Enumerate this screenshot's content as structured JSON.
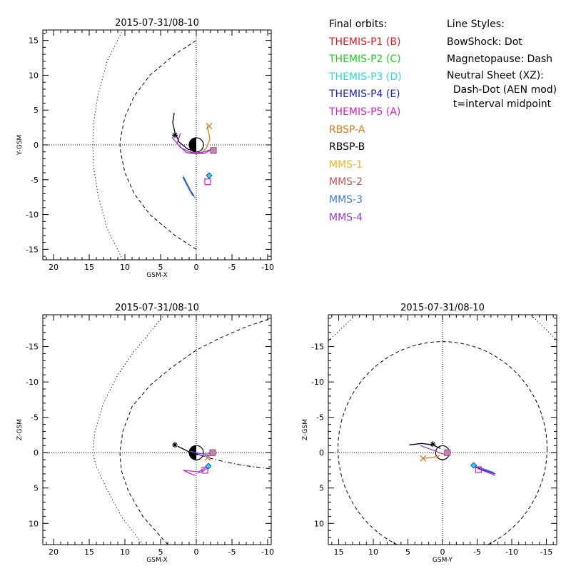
{
  "colors": {
    "THEMIS-P1": "#e8181b",
    "THEMIS-P2": "#19d419",
    "THEMIS-P3": "#22dede",
    "THEMIS-P4": "#1820c8",
    "THEMIS-P5": "#d41bd4",
    "RBSP-A": "#e07818",
    "RBSP-B": "#000000",
    "MMS-1": "#f0b21c",
    "MMS-2": "#c85050",
    "MMS-3": "#3a7fd0",
    "MMS-4": "#9838d8"
  },
  "legend": {
    "orbits_title": "Final orbits:",
    "orbits": [
      {
        "label": "THEMIS-P1 (B)",
        "key": "THEMIS-P1"
      },
      {
        "label": "THEMIS-P2 (C)",
        "key": "THEMIS-P2"
      },
      {
        "label": "THEMIS-P3 (D)",
        "key": "THEMIS-P3"
      },
      {
        "label": "THEMIS-P4 (E)",
        "key": "THEMIS-P4"
      },
      {
        "label": "THEMIS-P5 (A)",
        "key": "THEMIS-P5"
      },
      {
        "label": "RBSP-A",
        "key": "RBSP-A"
      },
      {
        "label": "RBSP-B",
        "key": "RBSP-B"
      },
      {
        "label": "MMS-1",
        "key": "MMS-1"
      },
      {
        "label": "MMS-2",
        "key": "MMS-2"
      },
      {
        "label": "MMS-3",
        "key": "MMS-3"
      },
      {
        "label": "MMS-4",
        "key": "MMS-4"
      }
    ],
    "styles_title": "Line Styles:",
    "styles": [
      "BowShock: Dot",
      "Magnetopause: Dash"
    ],
    "styles_note": [
      "Neutral Sheet (XZ):",
      "  Dash-Dot (AEN mod)",
      "  t=interval midpoint"
    ]
  },
  "chart_data": [
    {
      "type": "line",
      "panel": "XY",
      "title": "2015-07-31/08-10",
      "xlabel": "GSM-X",
      "ylabel": "Y-GSM",
      "xlim": [
        21.5,
        -10.5
      ],
      "ylim": [
        16.5,
        -16.5
      ],
      "xticks": [
        20,
        15,
        10,
        5,
        0,
        -5,
        -10
      ],
      "yticks": [
        -15,
        -10,
        -5,
        0,
        5,
        10,
        15
      ],
      "boundaries": [
        {
          "name": "BowShock",
          "style": "dot",
          "points": [
            [
              10.3,
              -16.5
            ],
            [
              12.5,
              -12
            ],
            [
              13.8,
              -7
            ],
            [
              14.4,
              -3
            ],
            [
              14.5,
              0
            ],
            [
              14.4,
              3
            ],
            [
              13.8,
              7
            ],
            [
              12.5,
              12
            ],
            [
              10.3,
              16.5
            ]
          ]
        },
        {
          "name": "Magnetopause",
          "style": "dash",
          "points": [
            [
              0,
              -15
            ],
            [
              3,
              -13
            ],
            [
              6.5,
              -10
            ],
            [
              8.7,
              -7
            ],
            [
              10,
              -4
            ],
            [
              10.6,
              -1
            ],
            [
              10.7,
              0
            ],
            [
              10.6,
              1
            ],
            [
              10,
              4
            ],
            [
              8.7,
              7
            ],
            [
              6.5,
              10
            ],
            [
              3,
              13
            ],
            [
              0,
              15
            ]
          ]
        }
      ],
      "series": [
        {
          "key": "THEMIS-P3",
          "points": [
            [
              0.1,
              -7.7
            ],
            [
              0.6,
              -7
            ],
            [
              1.1,
              -6
            ],
            [
              1.6,
              -5
            ],
            [
              1.9,
              -4.4
            ]
          ]
        },
        {
          "key": "THEMIS-P4",
          "points": [
            [
              0.3,
              -7.4
            ],
            [
              0.8,
              -6.6
            ],
            [
              1.3,
              -5.6
            ],
            [
              1.8,
              -4.6
            ]
          ]
        },
        {
          "key": "MMS-3",
          "points": [
            [
              0.5,
              -7.3
            ],
            [
              1,
              -6.4
            ],
            [
              1.5,
              -5.4
            ],
            [
              1.9,
              -4.6
            ]
          ]
        },
        {
          "key": "THEMIS-P5",
          "points": [
            [
              2.2,
              1.7
            ],
            [
              2.7,
              0.2
            ],
            [
              1.4,
              -1.1
            ],
            [
              0,
              -1.3
            ],
            [
              -1.2,
              -1.2
            ],
            [
              -2.2,
              -0.6
            ],
            [
              -2.4,
              -0.8
            ]
          ]
        },
        {
          "key": "RBSP-A",
          "points": [
            [
              0.9,
              -0.9
            ],
            [
              0.2,
              -1.2
            ],
            [
              -0.6,
              -1.2
            ],
            [
              -1.4,
              -0.5
            ],
            [
              -1.9,
              0.8
            ],
            [
              -1.7,
              2
            ],
            [
              -1.5,
              2.7
            ]
          ]
        },
        {
          "key": "RBSP-B",
          "points": [
            [
              3.1,
              4.6
            ],
            [
              3.3,
              3.2
            ],
            [
              3,
              1.8
            ],
            [
              2.4,
              0.4
            ],
            [
              1.2,
              -0.6
            ],
            [
              0.3,
              -0.9
            ]
          ]
        },
        {
          "key": "MMS-4",
          "points": [
            [
              3.4,
              1.1
            ],
            [
              2.2,
              -0.4
            ],
            [
              0.7,
              -1.1
            ],
            [
              -0.8,
              -1.1
            ],
            [
              -2.2,
              -0.6
            ]
          ]
        }
      ],
      "markers": [
        {
          "key": "THEMIS-P5",
          "shape": "square",
          "at": [
            -1.6,
            -5.3
          ]
        },
        {
          "key": "THEMIS-P3",
          "shape": "diamond",
          "at": [
            -1.8,
            -4.4
          ]
        },
        {
          "key": "RBSP-A",
          "shape": "x",
          "at": [
            -1.8,
            2.7
          ]
        },
        {
          "key": "RBSP-B",
          "shape": "asterisk",
          "at": [
            3.0,
            1.4
          ]
        },
        {
          "key": "MMS-4",
          "shape": "square-x",
          "at": [
            -2.4,
            -0.8
          ]
        }
      ]
    },
    {
      "type": "line",
      "panel": "XZ",
      "title": "2015-07-31/08-10",
      "xlabel": "GSM-X",
      "ylabel": "Z-GSM",
      "xlim": [
        21.5,
        -10.5
      ],
      "ylim": [
        -19.5,
        13
      ],
      "xticks": [
        20,
        15,
        10,
        5,
        0,
        -5,
        -10
      ],
      "yticks": [
        10,
        5,
        0,
        -5,
        -10,
        -15
      ],
      "boundaries": [
        {
          "name": "BowShock",
          "style": "dot",
          "points": [
            [
              7.5,
              13
            ],
            [
              10.5,
              9
            ],
            [
              12.6,
              5
            ],
            [
              14,
              2
            ],
            [
              14.5,
              0
            ],
            [
              14.2,
              -3
            ],
            [
              13,
              -7
            ],
            [
              11,
              -11
            ],
            [
              8.8,
              -14.2
            ],
            [
              6.5,
              -17
            ],
            [
              4.5,
              -19.5
            ]
          ]
        },
        {
          "name": "Magnetopause",
          "style": "dash",
          "points": [
            [
              4,
              13
            ],
            [
              7.5,
              9
            ],
            [
              9.5,
              5.5
            ],
            [
              10.5,
              2.5
            ],
            [
              10.7,
              0
            ],
            [
              10.3,
              -3
            ],
            [
              9,
              -6.5
            ],
            [
              6.5,
              -9.5
            ],
            [
              3.5,
              -12
            ],
            [
              0,
              -14.5
            ],
            [
              -3.5,
              -16.3
            ],
            [
              -7,
              -17.8
            ],
            [
              -10.5,
              -19
            ]
          ]
        },
        {
          "name": "Neutral Sheet",
          "style": "dashdot",
          "points": [
            [
              -0.5,
              0.3
            ],
            [
              -2,
              0.8
            ],
            [
              -4,
              1.3
            ],
            [
              -6,
              1.7
            ],
            [
              -8,
              2
            ],
            [
              -10.5,
              2.3
            ]
          ]
        }
      ],
      "series": [
        {
          "key": "THEMIS-P5",
          "points": [
            [
              0.2,
              3.2
            ],
            [
              1,
              2.9
            ],
            [
              1.8,
              2.5
            ],
            [
              -0.3,
              2.7
            ],
            [
              -1,
              2.4
            ],
            [
              -1.6,
              1.8
            ]
          ]
        },
        {
          "key": "MMS-3",
          "points": [
            [
              -0.2,
              2.9
            ],
            [
              -1,
              2.6
            ],
            [
              -1.7,
              2.1
            ]
          ]
        },
        {
          "key": "THEMIS-P4",
          "points": [
            [
              0.6,
              -0.2
            ],
            [
              -0.2,
              0.2
            ],
            [
              -1,
              0.5
            ],
            [
              -2,
              0.4
            ]
          ]
        },
        {
          "key": "RBSP-B",
          "points": [
            [
              2.6,
              -0.9
            ],
            [
              1.6,
              -0.4
            ],
            [
              0.6,
              0.1
            ],
            [
              -0.2,
              0.3
            ]
          ]
        },
        {
          "key": "MMS-4",
          "points": [
            [
              0.9,
              -0.2
            ],
            [
              -0.4,
              0.1
            ],
            [
              -1.5,
              0.2
            ],
            [
              -2.2,
              0
            ]
          ]
        }
      ],
      "markers": [
        {
          "key": "THEMIS-P5",
          "shape": "square",
          "at": [
            -1.2,
            2.5
          ]
        },
        {
          "key": "THEMIS-P3",
          "shape": "diamond",
          "at": [
            -1.7,
            1.9
          ]
        },
        {
          "key": "RBSP-A",
          "shape": "x",
          "at": [
            -1.6,
            0.7
          ]
        },
        {
          "key": "RBSP-B",
          "shape": "asterisk",
          "at": [
            3.0,
            -1.1
          ]
        },
        {
          "key": "MMS-4",
          "shape": "square-x",
          "at": [
            -2.3,
            0
          ]
        }
      ]
    },
    {
      "type": "line",
      "panel": "YZ",
      "title": "2015-07-31/08-10",
      "xlabel": "GSM-Y",
      "ylabel": "Z-GSM",
      "xlim": [
        16.5,
        -16.5
      ],
      "ylim": [
        -19.5,
        13
      ],
      "xticks": [
        15,
        10,
        5,
        0,
        -5,
        -10,
        -15
      ],
      "yticks": [
        10,
        5,
        0,
        -5,
        -10,
        -15
      ],
      "boundaries": [
        {
          "name": "Magnetopause",
          "style": "dash",
          "center": [
            0,
            -0.6
          ],
          "radius": 15.1
        },
        {
          "name": "BowShock",
          "style": "dot",
          "segments": [
            [
              [
                16.5,
                -15.8
              ],
              [
                12.5,
                -19.5
              ]
            ],
            [
              [
                -12.8,
                -19.5
              ],
              [
                -16.5,
                -15.9
              ]
            ]
          ]
        }
      ],
      "series": [
        {
          "key": "THEMIS-P5",
          "points": [
            [
              -5.2,
              2.3
            ],
            [
              -6.3,
              2.7
            ],
            [
              -7.6,
              3.2
            ]
          ]
        },
        {
          "key": "THEMIS-P4",
          "points": [
            [
              -4.8,
              2.1
            ],
            [
              -6.1,
              2.5
            ],
            [
              -7.6,
              3.0
            ]
          ]
        },
        {
          "key": "MMS-3",
          "points": [
            [
              -4.6,
              1.9
            ],
            [
              -6,
              2.3
            ],
            [
              -7.4,
              2.8
            ]
          ]
        },
        {
          "key": "RBSP-A",
          "points": [
            [
              2.9,
              0.8
            ],
            [
              1.5,
              0.7
            ],
            [
              0.4,
              0.4
            ]
          ]
        },
        {
          "key": "RBSP-B",
          "points": [
            [
              4.8,
              -1.1
            ],
            [
              3,
              -1.3
            ],
            [
              1.4,
              -1.1
            ],
            [
              0.3,
              -0.6
            ]
          ]
        },
        {
          "key": "MMS-4",
          "points": [
            [
              3.2,
              -1
            ],
            [
              1.5,
              -0.4
            ],
            [
              0.2,
              0.1
            ],
            [
              -0.8,
              0.3
            ]
          ]
        }
      ],
      "markers": [
        {
          "key": "THEMIS-P5",
          "shape": "square",
          "at": [
            -5.2,
            2.4
          ]
        },
        {
          "key": "THEMIS-P3",
          "shape": "diamond",
          "at": [
            -4.5,
            1.8
          ]
        },
        {
          "key": "RBSP-A",
          "shape": "x",
          "at": [
            2.8,
            0.8
          ]
        },
        {
          "key": "RBSP-B",
          "shape": "asterisk",
          "at": [
            1.4,
            -1.2
          ]
        },
        {
          "key": "MMS-4",
          "shape": "square-x",
          "at": [
            -0.7,
            0
          ]
        }
      ]
    }
  ]
}
